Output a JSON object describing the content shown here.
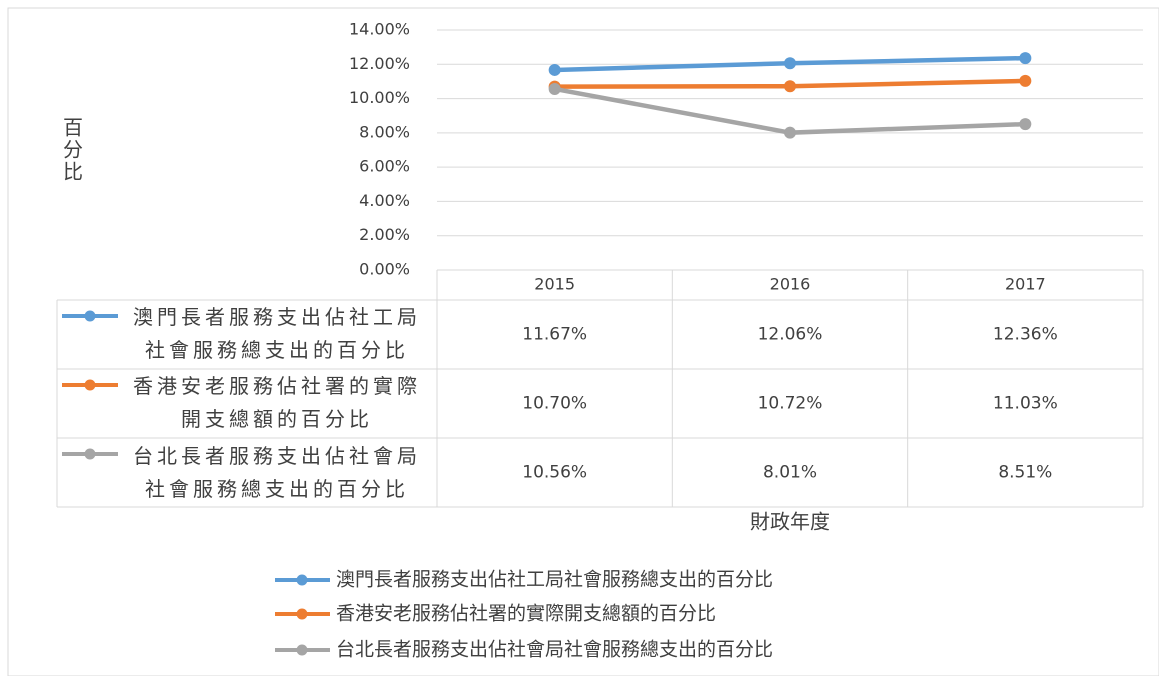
{
  "chart_data": {
    "type": "line",
    "ylabel": "百分比",
    "xlabel": "財政年度",
    "categories": [
      "2015",
      "2016",
      "2017"
    ],
    "ylim": [
      0,
      14
    ],
    "yticks": [
      {
        "value": 0,
        "label": "0.00%"
      },
      {
        "value": 2,
        "label": "2.00%"
      },
      {
        "value": 4,
        "label": "4.00%"
      },
      {
        "value": 6,
        "label": "6.00%"
      },
      {
        "value": 8,
        "label": "8.00%"
      },
      {
        "value": 10,
        "label": "10.00%"
      },
      {
        "value": 12,
        "label": "12.00%"
      },
      {
        "value": 14,
        "label": "14.00%"
      }
    ],
    "grid": true,
    "legend": "bottom",
    "series": [
      {
        "name": "澳門長者服務支出佔社工局社會服務總支出的百分比",
        "color": "#5b9bd5",
        "values": [
          11.67,
          12.06,
          12.36
        ],
        "value_labels": [
          "11.67%",
          "12.06%",
          "12.36%"
        ]
      },
      {
        "name": "香港安老服務佔社署的實際開支總額的百分比",
        "color": "#ed7d31",
        "values": [
          10.7,
          10.72,
          11.03
        ],
        "value_labels": [
          "10.70%",
          "10.72%",
          "11.03%"
        ]
      },
      {
        "name": "台北長者服務支出佔社會局社會服務總支出的百分比",
        "color": "#a5a5a5",
        "values": [
          10.56,
          8.01,
          8.51
        ],
        "value_labels": [
          "10.56%",
          "8.01%",
          "8.51%"
        ]
      }
    ]
  }
}
